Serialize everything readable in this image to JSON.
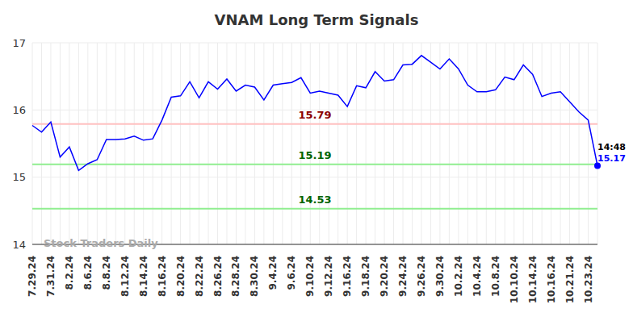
{
  "chart_data": {
    "type": "line",
    "title": "VNAM Long Term Signals",
    "categories": [
      "7.29.24",
      null,
      "7.31.24",
      null,
      "8.2.24",
      null,
      "8.6.24",
      null,
      "8.8.24",
      null,
      "8.12.24",
      null,
      "8.14.24",
      null,
      "8.16.24",
      null,
      "8.20.24",
      null,
      "8.22.24",
      null,
      "8.26.24",
      null,
      "8.28.24",
      null,
      "8.30.24",
      null,
      "9.4.24",
      null,
      "9.6.24",
      null,
      "9.10.24",
      null,
      "9.12.24",
      null,
      "9.16.24",
      null,
      "9.18.24",
      null,
      "9.20.24",
      null,
      "9.24.24",
      null,
      "9.26.24",
      null,
      "9.30.24",
      null,
      "10.2.24",
      null,
      "10.4.24",
      null,
      "10.8.24",
      null,
      "10.10.24",
      null,
      "10.14.24",
      null,
      "10.16.24",
      null,
      "10.21.24",
      null,
      "10.23.24",
      null
    ],
    "values": [
      15.77,
      15.67,
      15.82,
      15.3,
      15.45,
      15.1,
      15.2,
      15.26,
      15.56,
      15.56,
      15.57,
      15.61,
      15.55,
      15.57,
      15.85,
      16.19,
      16.21,
      16.42,
      16.18,
      16.42,
      16.31,
      16.46,
      16.28,
      16.37,
      16.34,
      16.15,
      16.37,
      16.39,
      16.41,
      16.48,
      16.25,
      16.28,
      16.25,
      16.22,
      16.05,
      16.36,
      16.33,
      16.57,
      16.43,
      16.45,
      16.67,
      16.68,
      16.81,
      16.71,
      16.61,
      16.76,
      16.61,
      16.37,
      16.27,
      16.27,
      16.3,
      16.49,
      16.45,
      16.67,
      16.53,
      16.2,
      16.25,
      16.27,
      16.12,
      15.97,
      15.85,
      15.17
    ],
    "color": "#0000ff",
    "ylim": [
      14,
      17
    ],
    "yticks": [
      14,
      15,
      16,
      17
    ],
    "grid": true,
    "reference_lines": [
      {
        "value": 15.79,
        "color": "#8b0000"
      },
      {
        "value": 15.19,
        "color": "#006400"
      },
      {
        "value": 14.53,
        "color": "#006400"
      }
    ],
    "last_label": "14:48",
    "watermark": "Stock Traders Daily"
  }
}
